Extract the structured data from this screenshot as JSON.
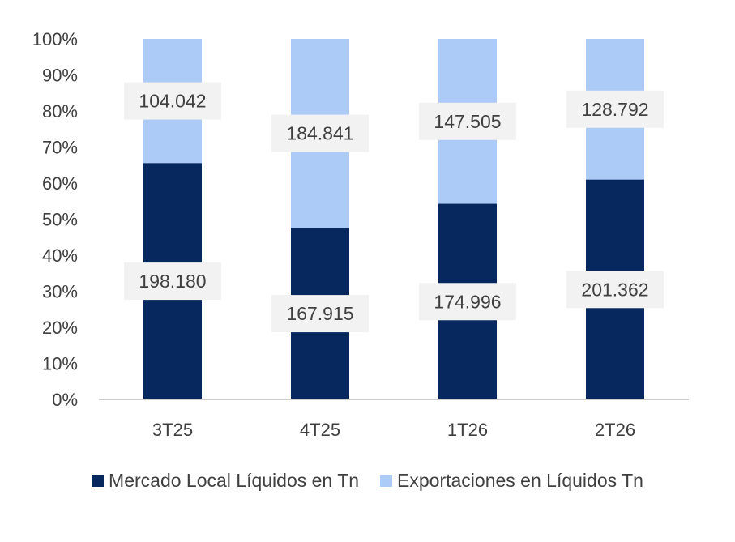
{
  "chart_data": {
    "type": "bar",
    "stacked": true,
    "normalized": true,
    "categories": [
      "3T25",
      "4T25",
      "1T26",
      "2T26"
    ],
    "series": [
      {
        "name": "Mercado Local Líquidos en Tn",
        "values": [
          198180,
          167915,
          174996,
          201362
        ],
        "labels": [
          "198.180",
          "167.915",
          "174.996",
          "201.362"
        ],
        "color": "#06285E"
      },
      {
        "name": "Exportaciones en Líquidos Tn",
        "values": [
          104042,
          184841,
          147505,
          128792
        ],
        "labels": [
          "104.042",
          "184.841",
          "147.505",
          "128.792"
        ],
        "color": "#ADCBF7"
      }
    ],
    "y_ticks": [
      "0%",
      "10%",
      "20%",
      "30%",
      "40%",
      "50%",
      "60%",
      "70%",
      "80%",
      "90%",
      "100%"
    ],
    "ylim": [
      0,
      100
    ],
    "legend_position": "bottom",
    "label_bg": "#F2F2F2"
  }
}
